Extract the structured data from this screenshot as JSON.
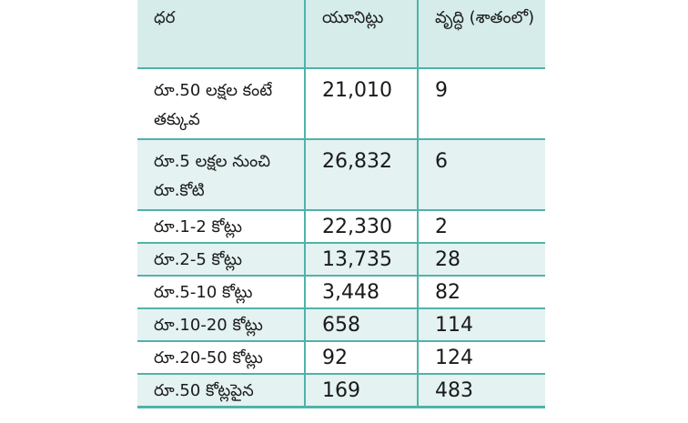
{
  "table": {
    "headers": [
      "ధర",
      "యూనిట్లు",
      "వృద్ధి (శాతంలో)"
    ],
    "rows": [
      {
        "price": "రూ.50 లక్షల కంటే తక్కువ",
        "units": "21,010",
        "growth": "9"
      },
      {
        "price": "రూ.5 లక్షల నుంచి రూ.కోటి",
        "units": "26,832",
        "growth": "6"
      },
      {
        "price": "రూ.1-2 కోట్లు",
        "units": "22,330",
        "growth": "2"
      },
      {
        "price": "రూ.2-5 కోట్లు",
        "units": "13,735",
        "growth": "28"
      },
      {
        "price": "రూ.5-10 కోట్లు",
        "units": "3,448",
        "growth": "82"
      },
      {
        "price": "రూ.10-20 కోట్లు",
        "units": "658",
        "growth": "114"
      },
      {
        "price": "రూ.20-50 కోట్లు",
        "units": "92",
        "growth": "124"
      },
      {
        "price": "రూ.50 కోట్లపైన",
        "units": "169",
        "growth": "483"
      }
    ]
  }
}
